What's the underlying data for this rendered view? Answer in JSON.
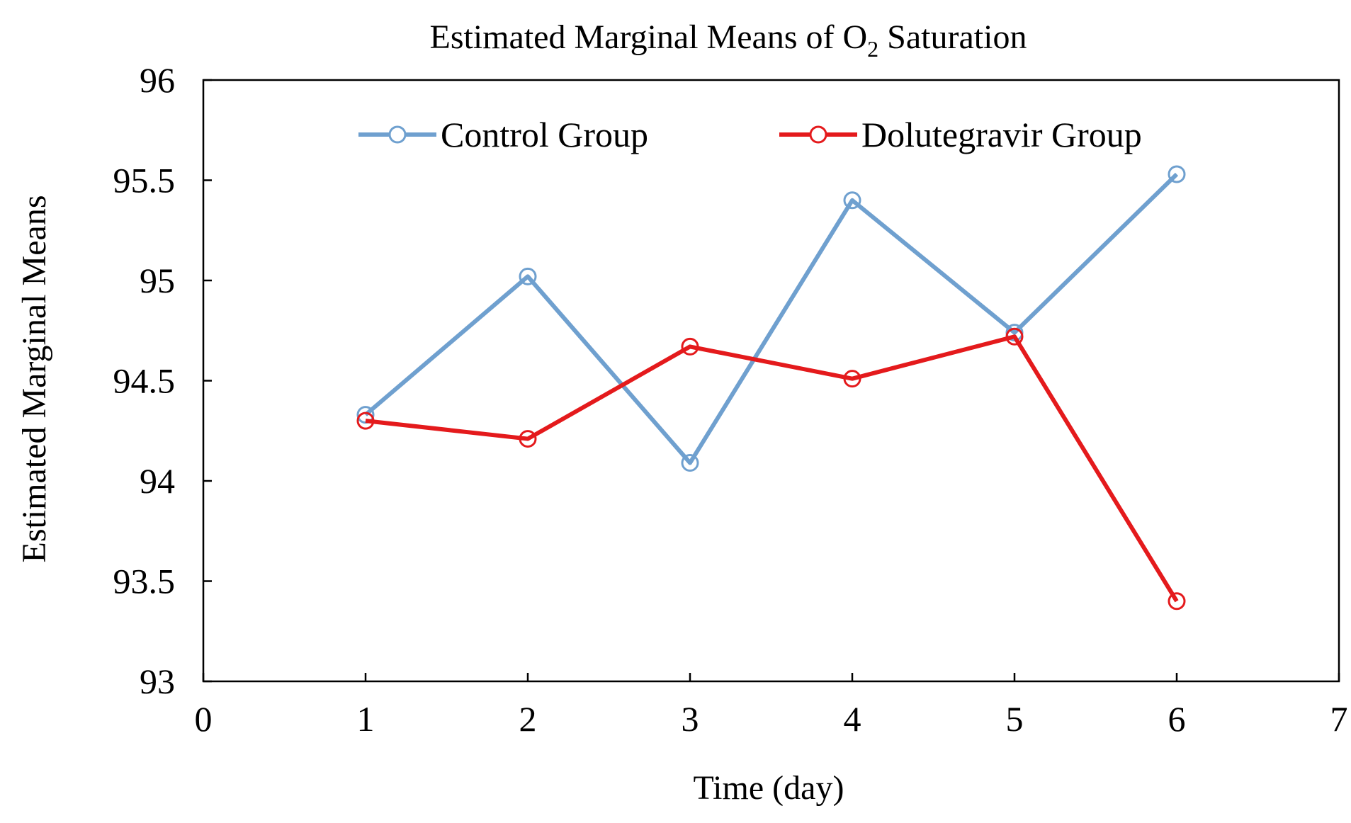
{
  "chart_data": {
    "type": "line",
    "title": {
      "prefix": "Estimated Marginal Means of O",
      "subscript": "2",
      "suffix": " Saturation"
    },
    "xlabel": "Time (day)",
    "ylabel": "Estimated Marginal Means",
    "xlim": [
      0,
      7
    ],
    "ylim": [
      93,
      96
    ],
    "xticks": [
      0,
      1,
      2,
      3,
      4,
      5,
      6,
      7
    ],
    "yticks": [
      93,
      93.5,
      94,
      94.5,
      95,
      95.5,
      96
    ],
    "ytick_labels": [
      "93",
      "93.5",
      "94",
      "94.5",
      "95",
      "95.5",
      "96"
    ],
    "xtick_labels": [
      "0",
      "1",
      "2",
      "3",
      "4",
      "5",
      "6",
      "7"
    ],
    "grid": false,
    "legend_position": "top",
    "x": [
      1,
      2,
      3,
      4,
      5,
      6
    ],
    "series": [
      {
        "name": "Control Group",
        "color": "#6fa0cf",
        "marker": "open-circle",
        "values": [
          94.33,
          95.02,
          94.09,
          95.4,
          94.74,
          95.53
        ]
      },
      {
        "name": "Dolutegravir Group",
        "color": "#e41a1c",
        "marker": "open-circle",
        "values": [
          94.3,
          94.21,
          94.67,
          94.51,
          94.72,
          93.4
        ]
      }
    ]
  }
}
